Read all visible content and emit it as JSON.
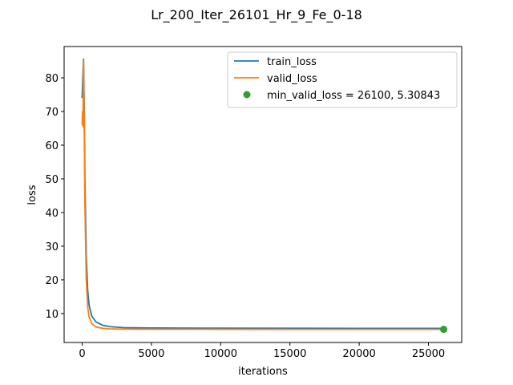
{
  "chart_data": {
    "type": "line",
    "title": "Lr_200_Iter_26101_Hr_9_Fe_0-18",
    "xlabel": "iterations",
    "ylabel": "loss",
    "xlim": [
      -1300,
      27400
    ],
    "ylim": [
      1.4,
      89.3
    ],
    "xticks": [
      0,
      5000,
      10000,
      15000,
      20000,
      25000
    ],
    "yticks": [
      10,
      20,
      30,
      40,
      50,
      60,
      70,
      80
    ],
    "legend_position": "top-right",
    "grid": false,
    "series": [
      {
        "name": "train_loss",
        "color": "#1f77b4",
        "x": [
          0,
          50,
          100,
          150,
          200,
          300,
          400,
          500,
          700,
          1000,
          1500,
          2000,
          3000,
          5000,
          10000,
          15000,
          20000,
          26100
        ],
        "y": [
          74,
          80,
          85.5,
          72,
          50,
          27,
          17,
          12.5,
          9.2,
          7.5,
          6.5,
          6.1,
          5.8,
          5.7,
          5.65,
          5.62,
          5.6,
          5.6
        ]
      },
      {
        "name": "valid_loss",
        "color": "#ff7f0e",
        "x": [
          0,
          30,
          60,
          100,
          150,
          200,
          300,
          400,
          500,
          700,
          1000,
          1500,
          2000,
          3000,
          5000,
          10000,
          15000,
          20000,
          26100
        ],
        "y": [
          66,
          70,
          65.5,
          85,
          65,
          42,
          20,
          12,
          9,
          7,
          6,
          5.6,
          5.45,
          5.38,
          5.33,
          5.32,
          5.31,
          5.31,
          5.31
        ]
      }
    ],
    "markers": [
      {
        "name": "min_valid_loss = 26100, 5.30843",
        "color": "#2ca02c",
        "x": 26100,
        "y": 5.30843
      }
    ]
  }
}
